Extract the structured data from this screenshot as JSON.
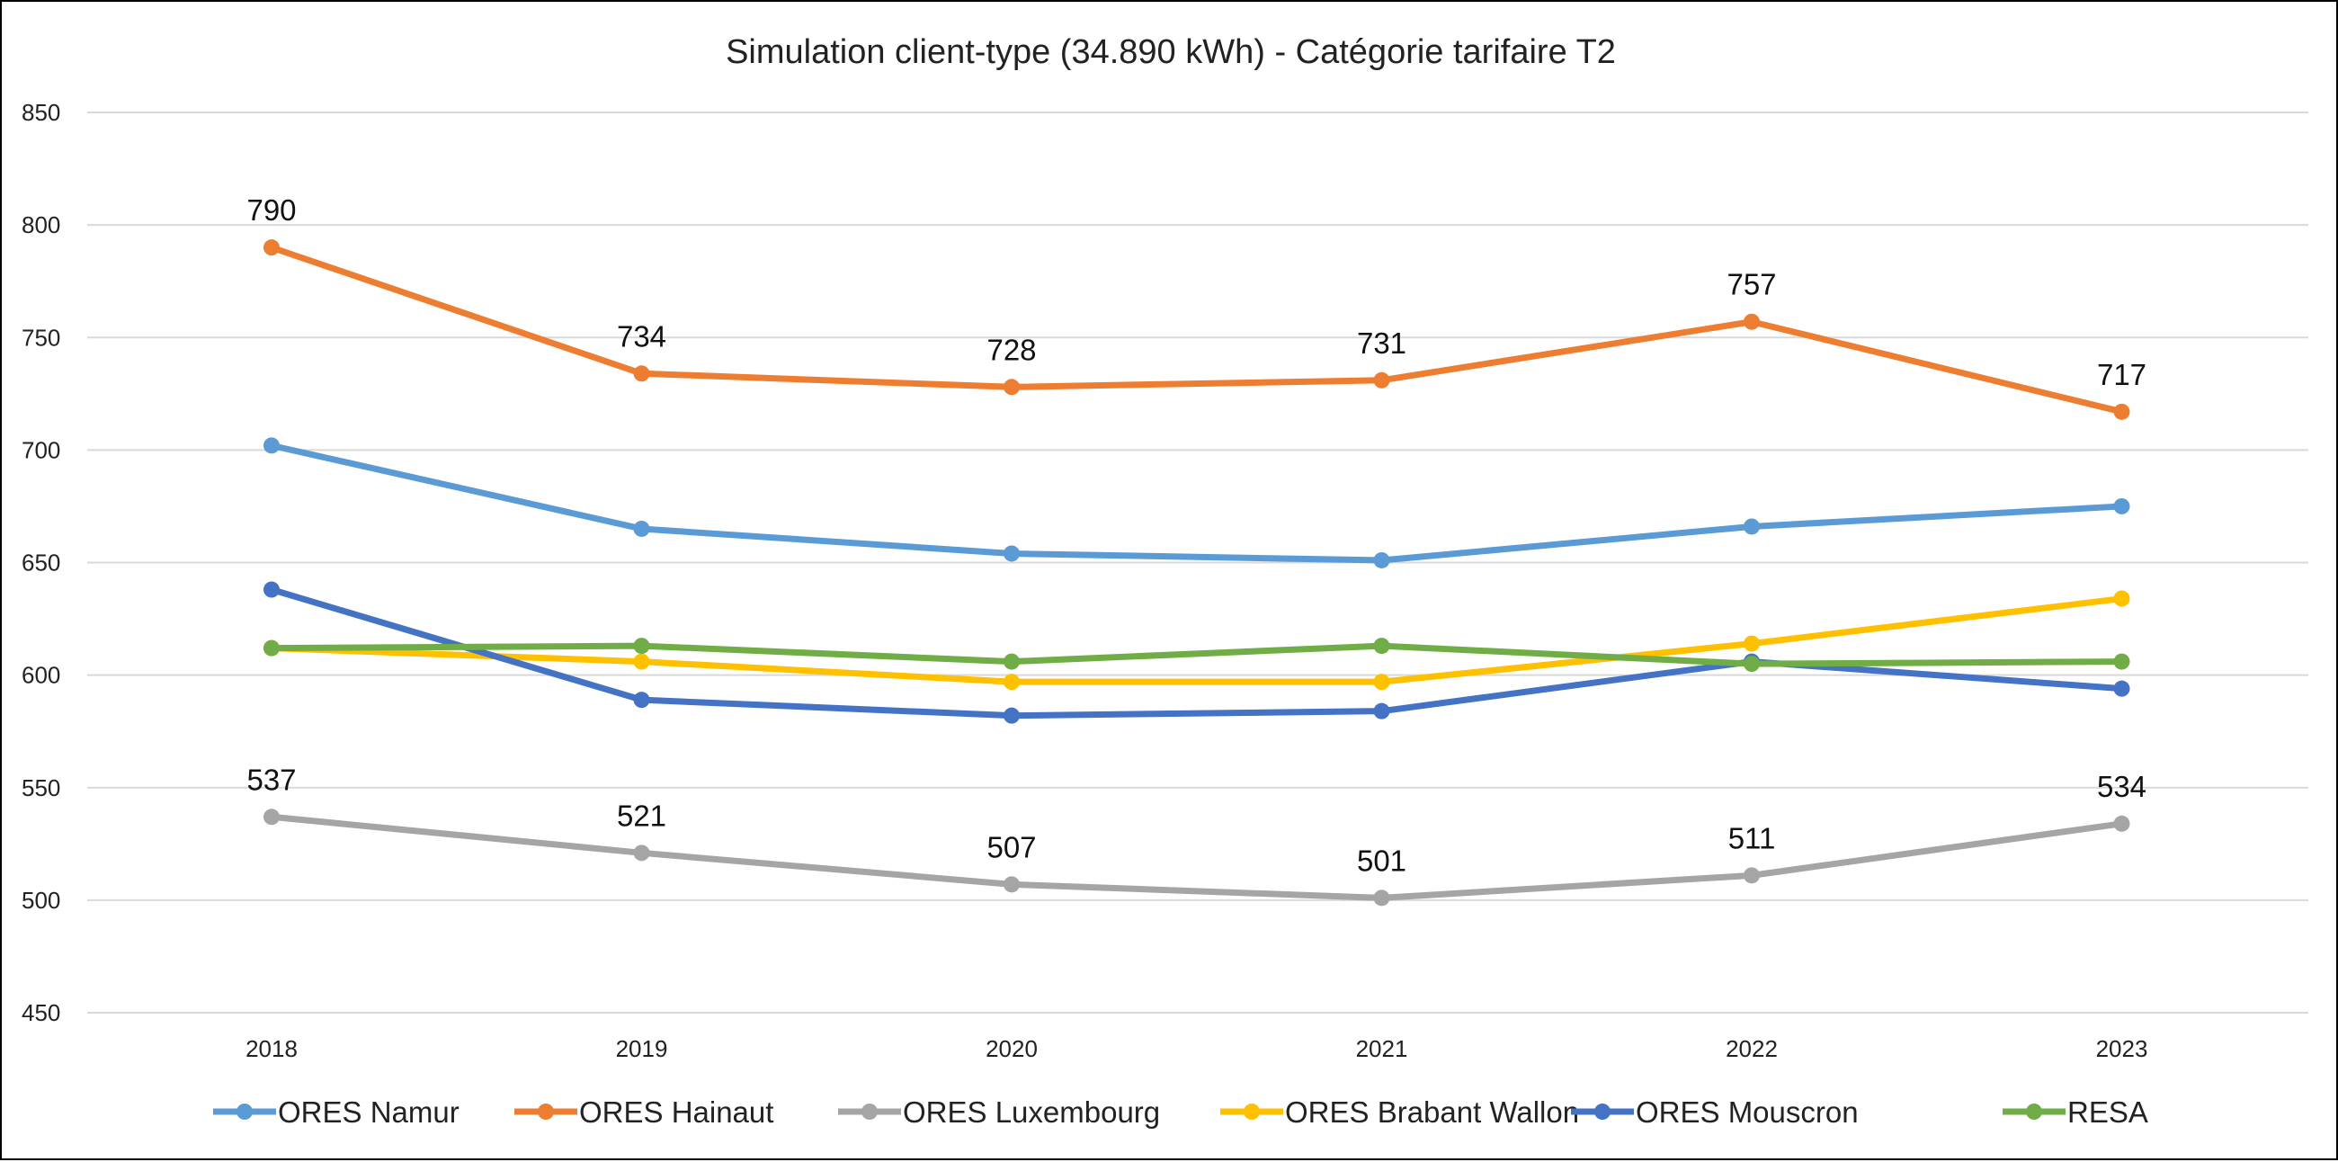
{
  "chart_data": {
    "type": "line",
    "title": "Simulation client-type (34.890 kWh) - Catégorie tarifaire T2",
    "xlabel": "",
    "ylabel": "",
    "categories": [
      "2018",
      "2019",
      "2020",
      "2021",
      "2022",
      "2023"
    ],
    "ylim": [
      450,
      850
    ],
    "yticks": [
      450,
      500,
      550,
      600,
      650,
      700,
      750,
      800,
      850
    ],
    "grid": true,
    "legend_position": "bottom",
    "series": [
      {
        "name": "ORES Namur",
        "color": "#5B9BD5",
        "values": [
          702,
          665,
          654,
          651,
          666,
          675
        ],
        "show_labels": false
      },
      {
        "name": "ORES Hainaut",
        "color": "#ED7D31",
        "values": [
          790,
          734,
          728,
          731,
          757,
          717
        ],
        "show_labels": true
      },
      {
        "name": "ORES Luxembourg",
        "color": "#A5A5A5",
        "values": [
          537,
          521,
          507,
          501,
          511,
          534
        ],
        "show_labels": true
      },
      {
        "name": "ORES Brabant Wallon",
        "color": "#FFC000",
        "values": [
          612,
          606,
          597,
          597,
          614,
          634
        ],
        "show_labels": false
      },
      {
        "name": "ORES Mouscron",
        "color": "#4472C4",
        "values": [
          638,
          589,
          582,
          584,
          606,
          594
        ],
        "show_labels": false
      },
      {
        "name": "RESA",
        "color": "#70AD47",
        "values": [
          612,
          613,
          606,
          613,
          605,
          606
        ],
        "show_labels": false
      }
    ]
  }
}
